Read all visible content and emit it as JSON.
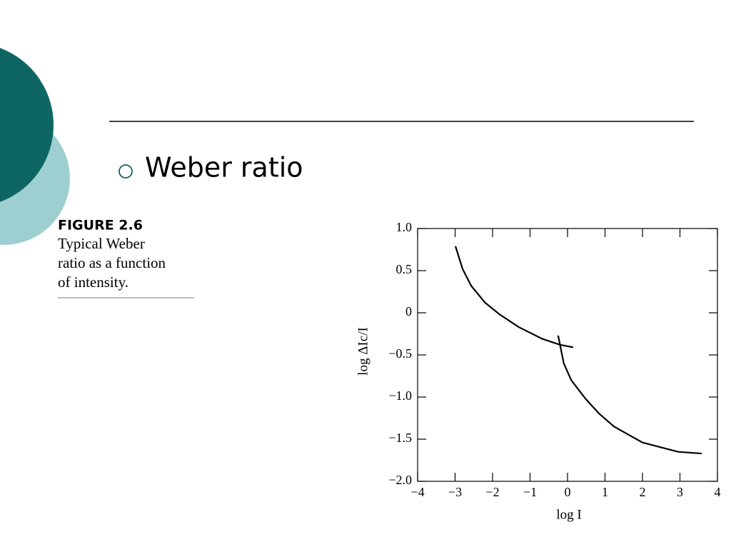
{
  "slide": {
    "bullet": "Weber ratio",
    "figure_label": "FIGURE 2.6",
    "caption_lines": [
      "Typical Weber",
      "ratio as a function",
      "of intensity."
    ]
  },
  "chart_data": {
    "type": "line",
    "x_label": "log I",
    "y_label": "log ΔIc/I",
    "xlim": [
      -4,
      4
    ],
    "ylim": [
      -2,
      1
    ],
    "xticks": [
      {
        "value": -4,
        "label": "−4"
      },
      {
        "value": -3,
        "label": "−3"
      },
      {
        "value": -2,
        "label": "−2"
      },
      {
        "value": -1,
        "label": "−1"
      },
      0,
      1,
      2,
      3,
      4
    ],
    "yticks": [
      {
        "value": 1,
        "label": "1.0"
      },
      0.5,
      0,
      {
        "value": -0.5,
        "label": "−0.5"
      },
      {
        "value": -1,
        "label": "−1.0"
      },
      {
        "value": -1.5,
        "label": "−1.5"
      },
      {
        "value": -2,
        "label": "−2.0"
      }
    ],
    "series": [
      {
        "color": "#000000",
        "x": [
          -2.99,
          -2.8,
          -2.57,
          -2.2,
          -1.81,
          -1.3,
          -0.67,
          -0.2,
          0.15
        ],
        "values": [
          0.79,
          0.52,
          0.32,
          0.12,
          -0.02,
          -0.17,
          -0.31,
          -0.38,
          -0.41
        ]
      },
      {
        "color": "#000000",
        "x": [
          -0.25,
          -0.1,
          0.1,
          0.48,
          0.85,
          1.24,
          2.0,
          2.95,
          3.58
        ],
        "values": [
          -0.27,
          -0.6,
          -0.8,
          -1.02,
          -1.2,
          -1.35,
          -1.54,
          -1.65,
          -1.67
        ]
      }
    ]
  }
}
